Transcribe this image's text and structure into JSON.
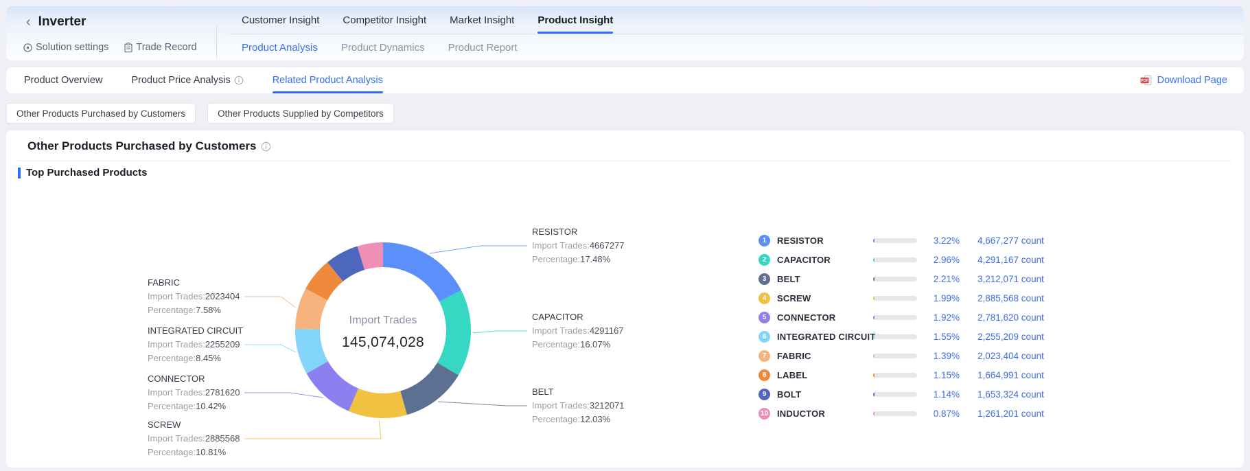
{
  "header": {
    "title": "Inverter",
    "quick_links": [
      {
        "label": "Solution settings",
        "icon": "target-icon"
      },
      {
        "label": "Trade Record",
        "icon": "clipboard-icon"
      }
    ],
    "top_tabs": [
      {
        "label": "Customer Insight",
        "active": false
      },
      {
        "label": "Competitor Insight",
        "active": false
      },
      {
        "label": "Market Insight",
        "active": false
      },
      {
        "label": "Product Insight",
        "active": true
      }
    ],
    "sub_tabs": [
      {
        "label": "Product Analysis",
        "active": true
      },
      {
        "label": "Product Dynamics",
        "active": false
      },
      {
        "label": "Product Report",
        "active": false
      }
    ]
  },
  "toolbar": {
    "tabs": [
      {
        "label": "Product Overview",
        "active": false,
        "info": false
      },
      {
        "label": "Product Price Analysis",
        "active": false,
        "info": true
      },
      {
        "label": "Related Product Analysis",
        "active": true,
        "info": false
      }
    ],
    "download_label": "Download Page"
  },
  "filters": [
    {
      "label": "Other Products Purchased by Customers"
    },
    {
      "label": "Other Products Supplied by Competitors"
    }
  ],
  "section": {
    "title": "Other Products Purchased by Customers",
    "subtitle": "Top Purchased Products"
  },
  "chart_data": {
    "type": "pie",
    "variant": "donut",
    "center": {
      "label": "Import Trades",
      "value": "145,074,028"
    },
    "callout_prefixes": {
      "trades": "Import Trades:",
      "percentage": "Percentage:"
    },
    "slices": [
      {
        "rank": 1,
        "name": "RESISTOR",
        "import_trades": 4667277,
        "donut_pct": "17.48%",
        "total_pct": "3.22%",
        "count_display": "4,667,277 count",
        "color": "#5B8FF9",
        "callout": "right"
      },
      {
        "rank": 2,
        "name": "CAPACITOR",
        "import_trades": 4291167,
        "donut_pct": "16.07%",
        "total_pct": "2.96%",
        "count_display": "4,291,167 count",
        "color": "#36D8C3",
        "callout": "right"
      },
      {
        "rank": 3,
        "name": "BELT",
        "import_trades": 3212071,
        "donut_pct": "12.03%",
        "total_pct": "2.21%",
        "count_display": "3,212,071 count",
        "color": "#5D7092",
        "callout": "right"
      },
      {
        "rank": 4,
        "name": "SCREW",
        "import_trades": 2885568,
        "donut_pct": "10.81%",
        "total_pct": "1.99%",
        "count_display": "2,885,568 count",
        "color": "#F0C23F",
        "callout": "left"
      },
      {
        "rank": 5,
        "name": "CONNECTOR",
        "import_trades": 2781620,
        "donut_pct": "10.42%",
        "total_pct": "1.92%",
        "count_display": "2,781,620 count",
        "color": "#8C7FF0",
        "callout": "left"
      },
      {
        "rank": 6,
        "name": "INTEGRATED CIRCUIT",
        "import_trades": 2255209,
        "donut_pct": "8.45%",
        "total_pct": "1.55%",
        "count_display": "2,255,209 count",
        "color": "#83D6FA",
        "callout": "left"
      },
      {
        "rank": 7,
        "name": "FABRIC",
        "import_trades": 2023404,
        "donut_pct": "7.58%",
        "total_pct": "1.39%",
        "count_display": "2,023,404 count",
        "color": "#F6B37E",
        "callout": "left"
      },
      {
        "rank": 8,
        "name": "LABEL",
        "import_trades": 1664991,
        "donut_pct": null,
        "total_pct": "1.15%",
        "count_display": "1,664,991 count",
        "color": "#EF8A3C",
        "callout": null
      },
      {
        "rank": 9,
        "name": "BOLT",
        "import_trades": 1653324,
        "donut_pct": null,
        "total_pct": "1.14%",
        "count_display": "1,653,324 count",
        "color": "#4D66BE",
        "callout": null
      },
      {
        "rank": 10,
        "name": "INDUCTOR",
        "import_trades": 1261201,
        "donut_pct": null,
        "total_pct": "0.87%",
        "count_display": "1,261,201 count",
        "color": "#F08FB6",
        "callout": null
      }
    ],
    "legend_position": "right"
  },
  "colors": {
    "accent": "#2F6BFF",
    "legend_value": "#3F6BE8",
    "page_bg": "#EEF0F5"
  }
}
